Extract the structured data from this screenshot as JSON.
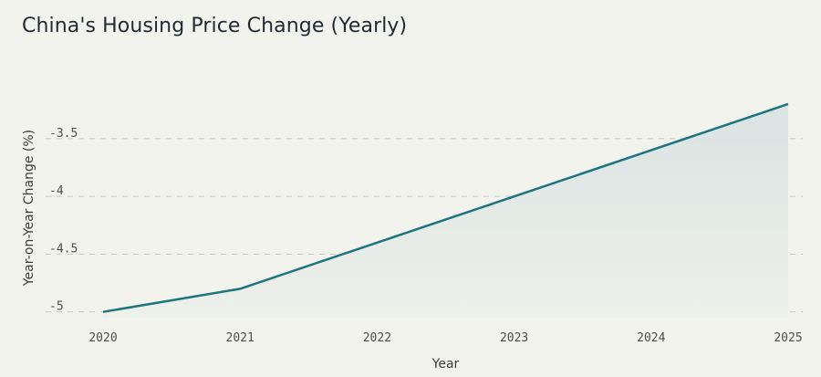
{
  "chart_data": {
    "type": "area",
    "title": "China's Housing Price Change (Yearly)",
    "xlabel": "Year",
    "ylabel": "Year-on-Year Change (%)",
    "x": [
      "2020",
      "2021",
      "2022",
      "2023",
      "2024",
      "2025"
    ],
    "series": [
      {
        "values": [
          -5.0,
          -4.8,
          -4.4,
          -4.0,
          -3.6,
          -3.2
        ]
      }
    ],
    "ylim": [
      -5.05,
      -3.05
    ],
    "yticks": [
      -5,
      -4.5,
      -4,
      -3.5
    ],
    "ytick_labels": [
      "-5",
      "-4.5",
      "-4",
      "-3.5"
    ],
    "grid": "horizontal dashed",
    "colors": {
      "line": "#1c7581",
      "fill_top": "#d9e3e2",
      "fill_bottom": "#eef0ea",
      "background": "#f3f3ee"
    }
  }
}
